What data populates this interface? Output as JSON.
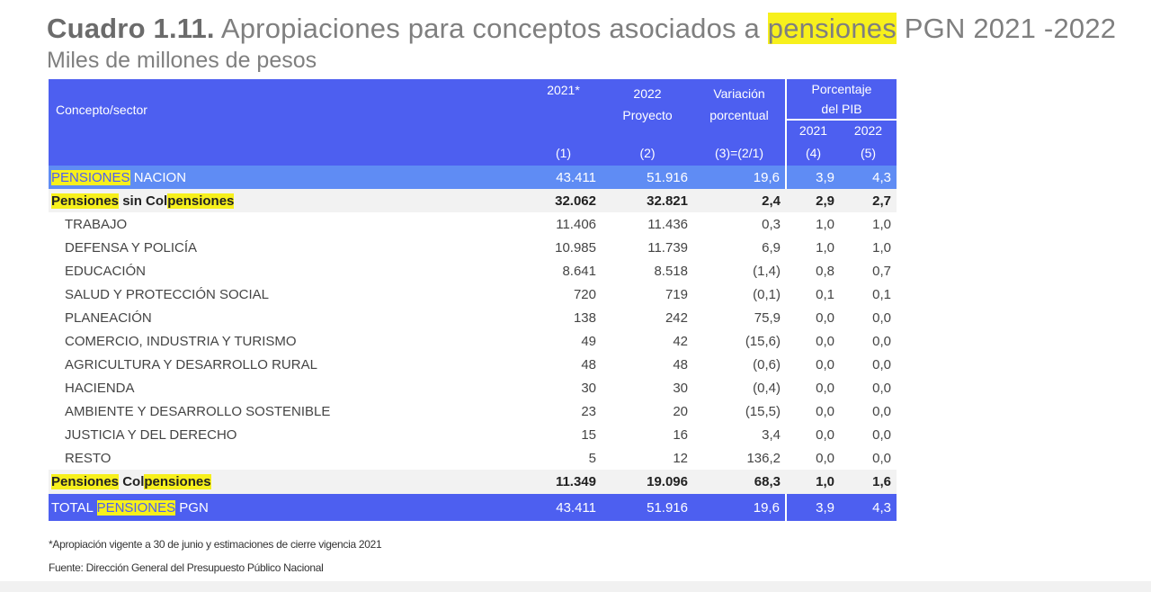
{
  "title": {
    "bold": "Cuadro 1.11.",
    "before": " Apropiaciones para conceptos asociados a ",
    "highlight": "pensiones",
    "after": " PGN 2021 -2022"
  },
  "subtitle": "Miles de millones de pesos",
  "header": {
    "concepto": "Concepto/sector",
    "col1": "2021*",
    "col2_top": "2022",
    "col2_bot": "Proyecto",
    "col3_top": "Variación",
    "col3_bot": "porcentual",
    "pct_top": "Porcentaje",
    "pct_bot": "del PIB",
    "y2021": "2021",
    "y2022": "2022",
    "n1": "(1)",
    "n2": "(2)",
    "n3": "(3)=(2/1)",
    "n4": "(4)",
    "n5": "(5)"
  },
  "rows": {
    "nacion": {
      "label_hl": "PENSIONES",
      "label_rest": " NACION",
      "v1": "43.411",
      "v2": "51.916",
      "v3": "19,6",
      "v4": "3,9",
      "v5": "4,3"
    },
    "sin": {
      "label_hl1": "Pensiones",
      "label_mid": " sin Col",
      "label_hl2": "pensiones",
      "v1": "32.062",
      "v2": "32.821",
      "v3": "2,4",
      "v4": "2,9",
      "v5": "2,7"
    },
    "sub": [
      {
        "label": "TRABAJO",
        "v1": "11.406",
        "v2": "11.436",
        "v3": "0,3",
        "v4": "1,0",
        "v5": "1,0"
      },
      {
        "label": "DEFENSA Y POLICÍA",
        "v1": "10.985",
        "v2": "11.739",
        "v3": "6,9",
        "v4": "1,0",
        "v5": "1,0"
      },
      {
        "label": "EDUCACIÓN",
        "v1": "8.641",
        "v2": "8.518",
        "v3": "(1,4)",
        "v4": "0,8",
        "v5": "0,7"
      },
      {
        "label": "SALUD Y PROTECCIÓN SOCIAL",
        "v1": "720",
        "v2": "719",
        "v3": "(0,1)",
        "v4": "0,1",
        "v5": "0,1"
      },
      {
        "label": "PLANEACIÓN",
        "v1": "138",
        "v2": "242",
        "v3": "75,9",
        "v4": "0,0",
        "v5": "0,0"
      },
      {
        "label": "COMERCIO, INDUSTRIA Y TURISMO",
        "v1": "49",
        "v2": "42",
        "v3": "(15,6)",
        "v4": "0,0",
        "v5": "0,0"
      },
      {
        "label": "AGRICULTURA Y DESARROLLO RURAL",
        "v1": "48",
        "v2": "48",
        "v3": "(0,6)",
        "v4": "0,0",
        "v5": "0,0"
      },
      {
        "label": "HACIENDA",
        "v1": "30",
        "v2": "30",
        "v3": "(0,4)",
        "v4": "0,0",
        "v5": "0,0"
      },
      {
        "label": "AMBIENTE Y DESARROLLO SOSTENIBLE",
        "v1": "23",
        "v2": "20",
        "v3": "(15,5)",
        "v4": "0,0",
        "v5": "0,0"
      },
      {
        "label": "JUSTICIA Y DEL DERECHO",
        "v1": "15",
        "v2": "16",
        "v3": "3,4",
        "v4": "0,0",
        "v5": "0,0"
      },
      {
        "label": "RESTO",
        "v1": "5",
        "v2": "12",
        "v3": "136,2",
        "v4": "0,0",
        "v5": "0,0"
      }
    ],
    "colp": {
      "label_hl1": "Pensiones",
      "label_mid": " Col",
      "label_hl2": "pensiones",
      "v1": "11.349",
      "v2": "19.096",
      "v3": "68,3",
      "v4": "1,0",
      "v5": "1,6"
    },
    "total": {
      "label_pre": "TOTAL ",
      "label_hl": "PENSIONES",
      "label_post": " PGN",
      "v1": "43.411",
      "v2": "51.916",
      "v3": "19,6",
      "v4": "3,9",
      "v5": "4,3"
    }
  },
  "footnote": "*Apropiación vigente a 30 de junio y estimaciones de cierre vigencia 2021",
  "source": "Fuente: Dirección General del Presupuesto Público Nacional"
}
